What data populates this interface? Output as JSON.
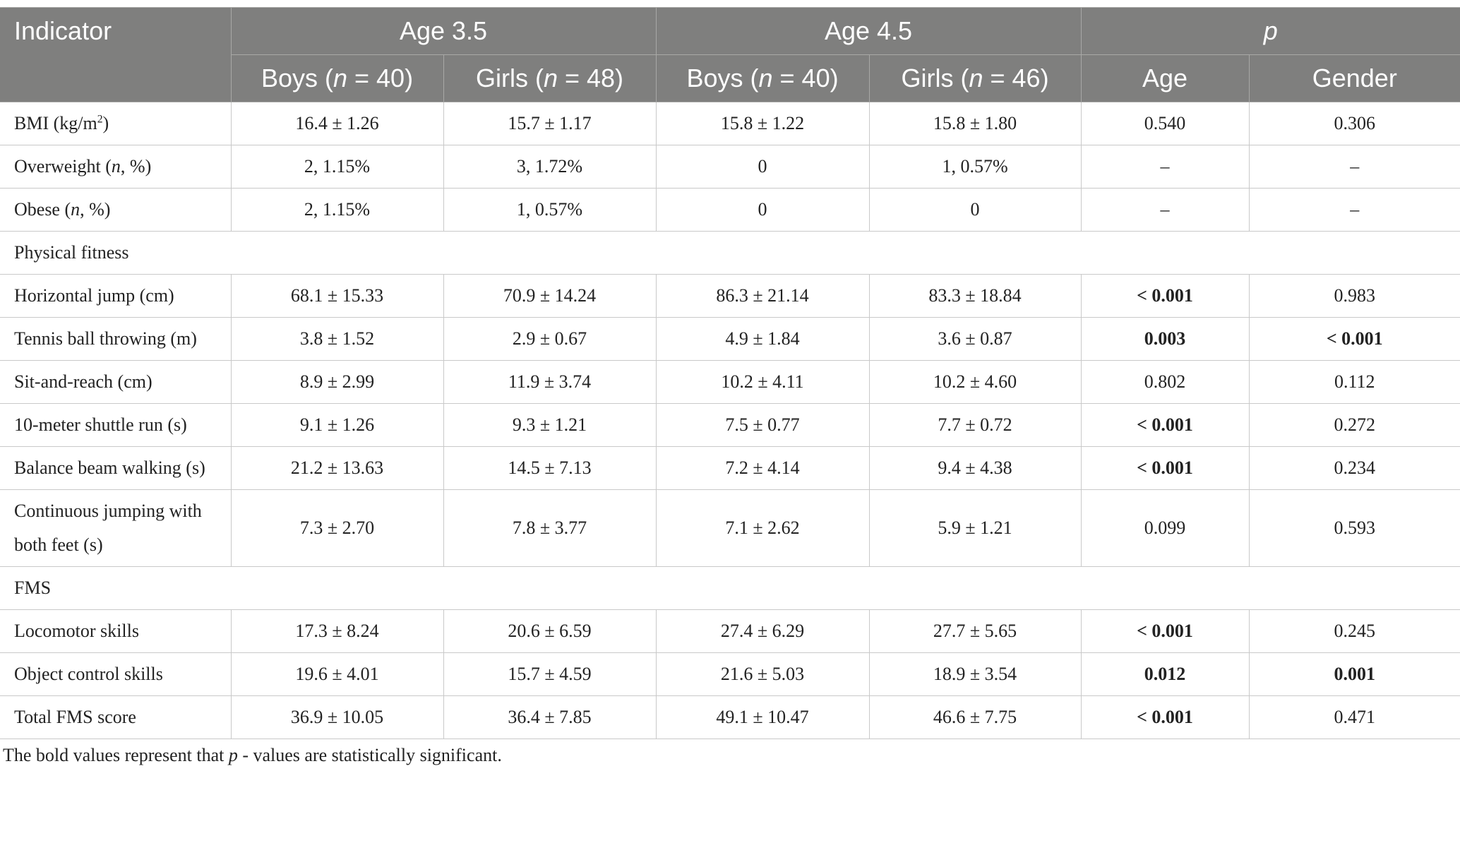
{
  "header": {
    "indicator": "Indicator",
    "groups": [
      "Age 3.5",
      "Age 4.5",
      "p"
    ],
    "subheaders": [
      [
        "Boys (",
        {
          "text": "n",
          "style": "italic"
        },
        " = 40)"
      ],
      [
        "Girls (",
        {
          "text": "n",
          "style": "italic"
        },
        " = 48)"
      ],
      [
        "Boys (",
        {
          "text": "n",
          "style": "italic"
        },
        " = 40)"
      ],
      [
        "Girls (",
        {
          "text": "n",
          "style": "italic"
        },
        " = 46)"
      ],
      "Age",
      "Gender"
    ]
  },
  "rows": [
    {
      "label": [
        "BMI (kg/m",
        {
          "text": "2",
          "style": "sup"
        },
        ")"
      ],
      "cells": [
        "16.4 ± 1.26",
        "15.7 ± 1.17",
        "15.8 ± 1.22",
        "15.8 ± 1.80",
        "0.540",
        "0.306"
      ]
    },
    {
      "label": [
        "Overweight (",
        {
          "text": "n",
          "style": "italic"
        },
        ", %)"
      ],
      "cells": [
        "2, 1.15%",
        "3, 1.72%",
        "0",
        "1, 0.57%",
        "–",
        "–"
      ]
    },
    {
      "label": [
        "Obese (",
        {
          "text": "n",
          "style": "italic"
        },
        ", %)"
      ],
      "cells": [
        "2, 1.15%",
        "1, 0.57%",
        "0",
        "0",
        "–",
        "–"
      ]
    },
    {
      "section": "Physical fitness"
    },
    {
      "label": "Horizontal jump (cm)",
      "cells": [
        "68.1 ± 15.33",
        "70.9 ± 14.24",
        "86.3 ± 21.14",
        "83.3 ± 18.84",
        {
          "text": "< 0.001",
          "bold": true
        },
        "0.983"
      ]
    },
    {
      "label": "Tennis ball throwing (m)",
      "cells": [
        "3.8 ± 1.52",
        "2.9 ± 0.67",
        "4.9 ± 1.84",
        "3.6 ± 0.87",
        {
          "text": "0.003",
          "bold": true
        },
        {
          "text": "< 0.001",
          "bold": true
        }
      ]
    },
    {
      "label": "Sit-and-reach (cm)",
      "cells": [
        "8.9 ± 2.99",
        "11.9 ± 3.74",
        "10.2 ± 4.11",
        "10.2 ± 4.60",
        "0.802",
        "0.112"
      ]
    },
    {
      "label": "10-meter shuttle run (s)",
      "cells": [
        "9.1 ± 1.26",
        "9.3 ± 1.21",
        "7.5 ± 0.77",
        "7.7 ± 0.72",
        {
          "text": "< 0.001",
          "bold": true
        },
        "0.272"
      ]
    },
    {
      "label": "Balance beam walking (s)",
      "cells": [
        "21.2 ± 13.63",
        "14.5 ± 7.13",
        "7.2 ± 4.14",
        "9.4 ± 4.38",
        {
          "text": "< 0.001",
          "bold": true
        },
        "0.234"
      ]
    },
    {
      "label": "Continuous jumping with both feet (s)",
      "cells": [
        "7.3 ± 2.70",
        "7.8 ± 3.77",
        "7.1 ± 2.62",
        "5.9 ± 1.21",
        "0.099",
        "0.593"
      ]
    },
    {
      "section": "FMS"
    },
    {
      "label": "Locomotor skills",
      "cells": [
        "17.3 ± 8.24",
        "20.6 ± 6.59",
        "27.4 ± 6.29",
        "27.7 ± 5.65",
        {
          "text": "< 0.001",
          "bold": true
        },
        "0.245"
      ]
    },
    {
      "label": "Object control skills",
      "cells": [
        "19.6 ± 4.01",
        "15.7 ± 4.59",
        "21.6 ± 5.03",
        "18.9 ± 3.54",
        {
          "text": "0.012",
          "bold": true
        },
        {
          "text": "0.001",
          "bold": true
        }
      ]
    },
    {
      "label": "Total FMS score",
      "cells": [
        "36.9 ± 10.05",
        "36.4 ± 7.85",
        "49.1 ± 10.47",
        "46.6 ± 7.75",
        {
          "text": "< 0.001",
          "bold": true
        },
        "0.471"
      ]
    }
  ],
  "footnote": [
    "The bold values represent that ",
    {
      "text": "p",
      "style": "italic"
    },
    " - values are statistically significant."
  ]
}
